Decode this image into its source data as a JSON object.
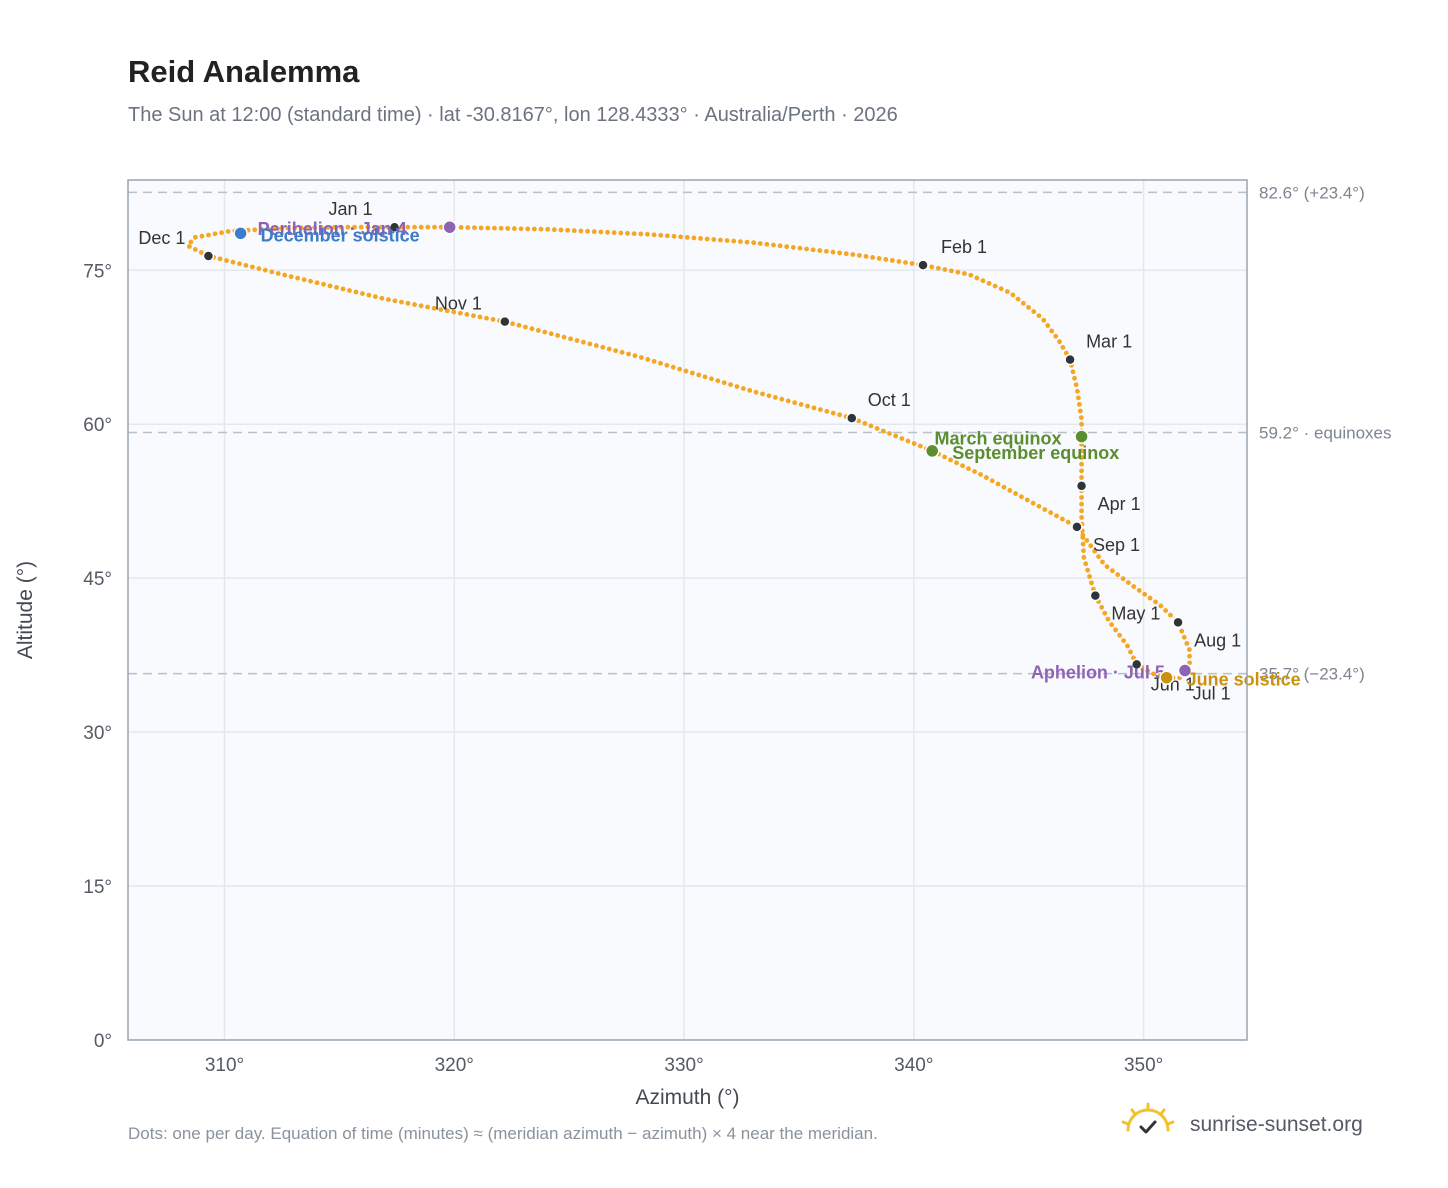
{
  "header": {
    "title": "Reid Analemma",
    "subtitle": "The Sun at 12:00 (standard time) · lat -30.8167°, lon 128.4333° · Australia/Perth · 2026"
  },
  "footer": {
    "note": "Dots: one per day. Equation of time (minutes) ≈ (meridian azimuth − azimuth) × 4 near the meridian.",
    "brand": "sunrise-sunset.org",
    "brand_icon": "sun-check-icon"
  },
  "colors": {
    "curve": "#f5a623",
    "month_marker": "#2f3439",
    "perihelion_aphelion": "#8e63b5",
    "december_solstice": "#3d7cc9",
    "equinox": "#5a8e2e",
    "june_solstice": "#c9920f",
    "reference_line": "#b8c0c9",
    "plot_background": "#f8fafd",
    "grid": "#e3e8ee"
  },
  "chart_data": {
    "type": "scatter",
    "title": "Reid Analemma",
    "xlabel": "Azimuth (°)",
    "ylabel": "Altitude (°)",
    "xlim": [
      305.8,
      354.5
    ],
    "ylim": [
      0,
      83.8
    ],
    "xticks": [
      310,
      320,
      330,
      340,
      350
    ],
    "yticks": [
      0,
      15,
      30,
      45,
      60,
      75
    ],
    "xtick_labels": [
      "310°",
      "320°",
      "330°",
      "340°",
      "350°"
    ],
    "ytick_labels": [
      "0°",
      "15°",
      "30°",
      "45°",
      "60°",
      "75°"
    ],
    "grid": true,
    "curve_points": [
      {
        "x": 317.4,
        "y": 79.2
      },
      {
        "x": 319.8,
        "y": 79.2
      },
      {
        "x": 324.0,
        "y": 79.0
      },
      {
        "x": 328.5,
        "y": 78.5
      },
      {
        "x": 333.0,
        "y": 77.7
      },
      {
        "x": 337.5,
        "y": 76.5
      },
      {
        "x": 340.4,
        "y": 75.5
      },
      {
        "x": 342.4,
        "y": 74.6
      },
      {
        "x": 344.2,
        "y": 72.8
      },
      {
        "x": 345.6,
        "y": 70.3
      },
      {
        "x": 346.3,
        "y": 68.2
      },
      {
        "x": 346.8,
        "y": 66.3
      },
      {
        "x": 347.1,
        "y": 63.5
      },
      {
        "x": 347.3,
        "y": 60.5
      },
      {
        "x": 347.3,
        "y": 58.8
      },
      {
        "x": 347.3,
        "y": 56.5
      },
      {
        "x": 347.3,
        "y": 54.0
      },
      {
        "x": 347.3,
        "y": 51.0
      },
      {
        "x": 347.4,
        "y": 47.0
      },
      {
        "x": 347.9,
        "y": 43.3
      },
      {
        "x": 348.5,
        "y": 40.8
      },
      {
        "x": 349.3,
        "y": 38.4
      },
      {
        "x": 349.7,
        "y": 36.6
      },
      {
        "x": 350.4,
        "y": 35.7
      },
      {
        "x": 351.0,
        "y": 35.3
      },
      {
        "x": 351.7,
        "y": 35.3
      },
      {
        "x": 352.0,
        "y": 36.3
      },
      {
        "x": 352.0,
        "y": 38.0
      },
      {
        "x": 351.5,
        "y": 40.7
      },
      {
        "x": 350.7,
        "y": 42.4
      },
      {
        "x": 349.5,
        "y": 44.3
      },
      {
        "x": 348.3,
        "y": 46.3
      },
      {
        "x": 347.1,
        "y": 50.0
      },
      {
        "x": 345.2,
        "y": 52.3
      },
      {
        "x": 343.0,
        "y": 55.0
      },
      {
        "x": 340.8,
        "y": 57.4
      },
      {
        "x": 337.3,
        "y": 60.6
      },
      {
        "x": 333.0,
        "y": 63.2
      },
      {
        "x": 328.0,
        "y": 66.6
      },
      {
        "x": 322.2,
        "y": 70.0
      },
      {
        "x": 317.0,
        "y": 72.2
      },
      {
        "x": 312.5,
        "y": 74.6
      },
      {
        "x": 309.3,
        "y": 76.4
      },
      {
        "x": 308.4,
        "y": 77.4
      },
      {
        "x": 308.7,
        "y": 78.2
      },
      {
        "x": 310.2,
        "y": 78.8
      },
      {
        "x": 312.5,
        "y": 79.1
      },
      {
        "x": 315.0,
        "y": 79.2
      },
      {
        "x": 317.4,
        "y": 79.2
      }
    ],
    "month_markers": [
      {
        "label": "Jan 1",
        "x": 317.4,
        "y": 79.2
      },
      {
        "label": "Feb 1",
        "x": 340.4,
        "y": 75.5
      },
      {
        "label": "Mar 1",
        "x": 346.8,
        "y": 66.3
      },
      {
        "label": "Apr 1",
        "x": 347.3,
        "y": 54.0
      },
      {
        "label": "May 1",
        "x": 347.9,
        "y": 43.3
      },
      {
        "label": "Jun 1",
        "x": 349.7,
        "y": 36.6
      },
      {
        "label": "Jul 1",
        "x": 351.7,
        "y": 35.9
      },
      {
        "label": "Aug 1",
        "x": 351.5,
        "y": 40.7
      },
      {
        "label": "Sep 1",
        "x": 347.1,
        "y": 50.0
      },
      {
        "label": "Oct 1",
        "x": 337.3,
        "y": 60.6
      },
      {
        "label": "Nov 1",
        "x": 322.2,
        "y": 70.0
      },
      {
        "label": "Dec 1",
        "x": 309.3,
        "y": 76.4
      }
    ],
    "events": [
      {
        "label": "Perihelion · Jan 4",
        "x": 319.8,
        "y": 79.2,
        "color_key": "perihelion_aphelion"
      },
      {
        "label": "December solstice",
        "x": 310.7,
        "y": 78.6,
        "color_key": "december_solstice"
      },
      {
        "label": "March equinox",
        "x": 347.3,
        "y": 58.8,
        "color_key": "equinox"
      },
      {
        "label": "September equinox",
        "x": 340.8,
        "y": 57.4,
        "color_key": "equinox"
      },
      {
        "label": "Aphelion · Jul 5",
        "x": 351.8,
        "y": 36.0,
        "color_key": "perihelion_aphelion"
      },
      {
        "label": "June solstice",
        "x": 351.0,
        "y": 35.3,
        "color_key": "june_solstice"
      }
    ],
    "reference_lines": [
      {
        "y": 82.6,
        "label": "82.6° (+23.4°)"
      },
      {
        "y": 59.2,
        "label": "59.2° · equinoxes"
      },
      {
        "y": 35.7,
        "label": "35.7° (−23.4°)"
      }
    ]
  }
}
